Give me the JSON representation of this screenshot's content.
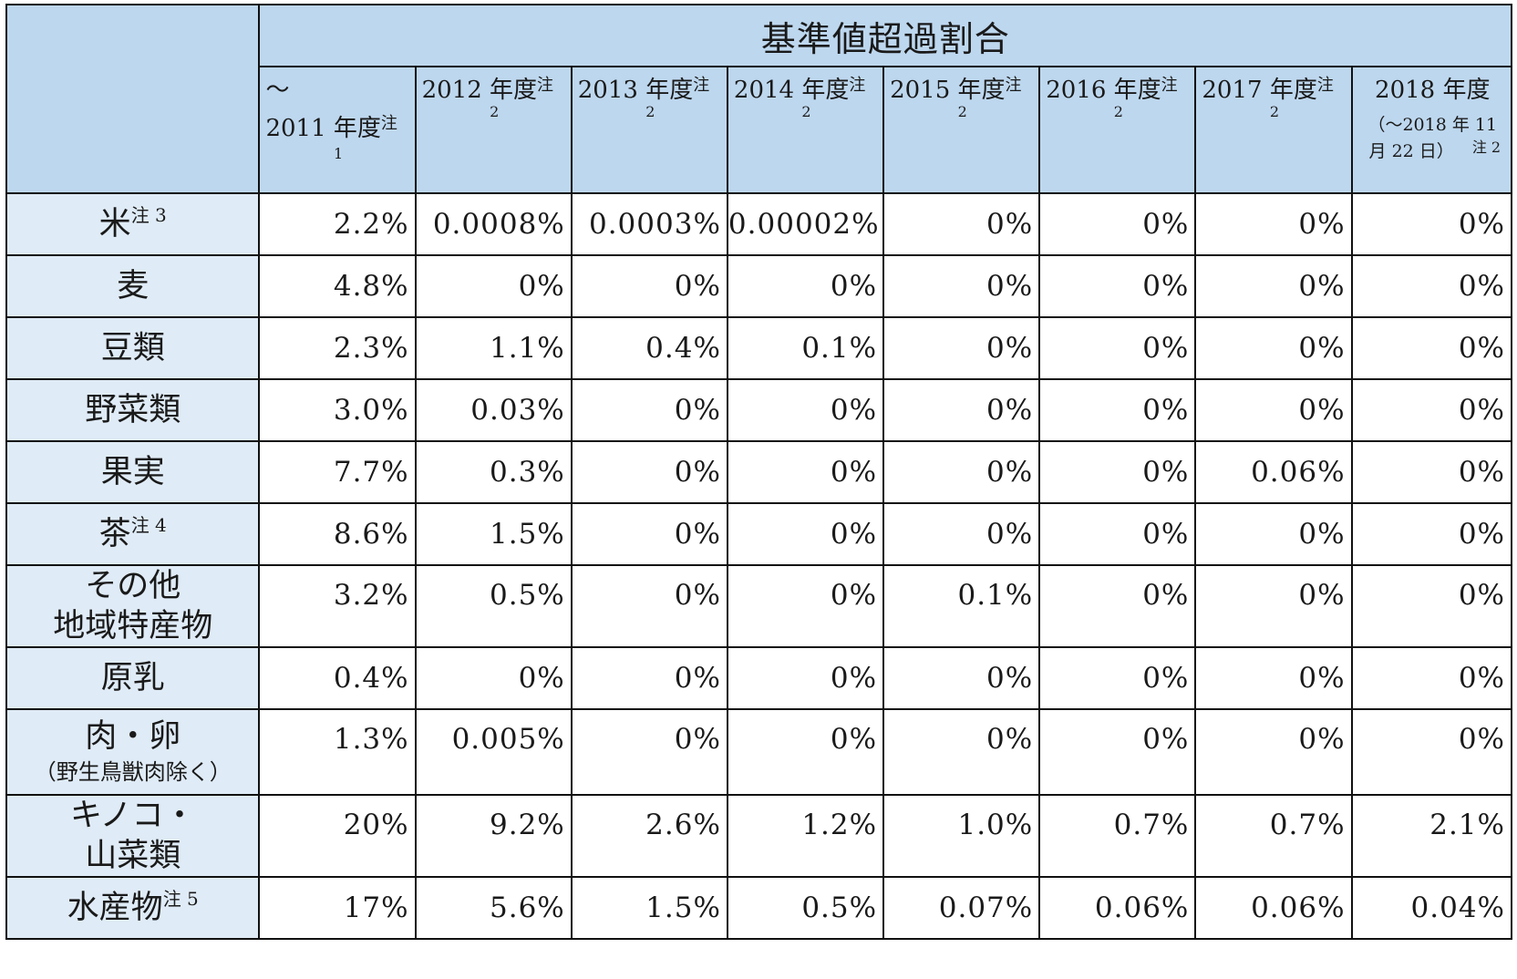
{
  "table": {
    "group_header": "基準値超過割合",
    "year_headers": [
      {
        "prefix": "～",
        "label": "2011 年度",
        "note": "注",
        "note_num": "1"
      },
      {
        "label": "2012 年度",
        "note": "注",
        "note_num": "2"
      },
      {
        "label": "2013 年度",
        "note": "注",
        "note_num": "2"
      },
      {
        "label": "2014 年度",
        "note": "注",
        "note_num": "2"
      },
      {
        "label": "2015 年度",
        "note": "注",
        "note_num": "2"
      },
      {
        "label": "2016 年度",
        "note": "注",
        "note_num": "2"
      },
      {
        "label": "2017 年度",
        "note": "注",
        "note_num": "2"
      },
      {
        "label": "2018 年度",
        "line2": "（～2018 年 11",
        "line3": "月 22 日）",
        "note": "注 2"
      }
    ],
    "rows": [
      {
        "label": "米",
        "note": "注 3",
        "values": [
          "2.2%",
          "0.0008%",
          "0.0003%",
          "0.00002%",
          "0%",
          "0%",
          "0%",
          "0%"
        ]
      },
      {
        "label": "麦",
        "values": [
          "4.8%",
          "0%",
          "0%",
          "0%",
          "0%",
          "0%",
          "0%",
          "0%"
        ]
      },
      {
        "label": "豆類",
        "values": [
          "2.3%",
          "1.1%",
          "0.4%",
          "0.1%",
          "0%",
          "0%",
          "0%",
          "0%"
        ]
      },
      {
        "label": "野菜類",
        "values": [
          "3.0%",
          "0.03%",
          "0%",
          "0%",
          "0%",
          "0%",
          "0%",
          "0%"
        ]
      },
      {
        "label": "果実",
        "values": [
          "7.7%",
          "0.3%",
          "0%",
          "0%",
          "0%",
          "0%",
          "0.06%",
          "0%"
        ]
      },
      {
        "label": "茶",
        "note": "注 4",
        "values": [
          "8.6%",
          "1.5%",
          "0%",
          "0%",
          "0%",
          "0%",
          "0%",
          "0%"
        ]
      },
      {
        "label": "その他",
        "label2": "地域特産物",
        "values": [
          "3.2%",
          "0.5%",
          "0%",
          "0%",
          "0.1%",
          "0%",
          "0%",
          "0%"
        ]
      },
      {
        "label": "原乳",
        "values": [
          "0.4%",
          "0%",
          "0%",
          "0%",
          "0%",
          "0%",
          "0%",
          "0%"
        ]
      },
      {
        "label": "肉・卵",
        "label_small": "（野生鳥獣肉除く）",
        "values": [
          "1.3%",
          "0.005%",
          "0%",
          "0%",
          "0%",
          "0%",
          "0%",
          "0%"
        ]
      },
      {
        "label": "キノコ・",
        "label2": "山菜類",
        "values": [
          "20%",
          "9.2%",
          "2.6%",
          "1.2%",
          "1.0%",
          "0.7%",
          "0.7%",
          "2.1%"
        ]
      },
      {
        "label": "水産物",
        "note": "注 5",
        "values": [
          "17%",
          "5.6%",
          "1.5%",
          "0.5%",
          "0.07%",
          "0.06%",
          "0.06%",
          "0.04%"
        ]
      }
    ]
  }
}
